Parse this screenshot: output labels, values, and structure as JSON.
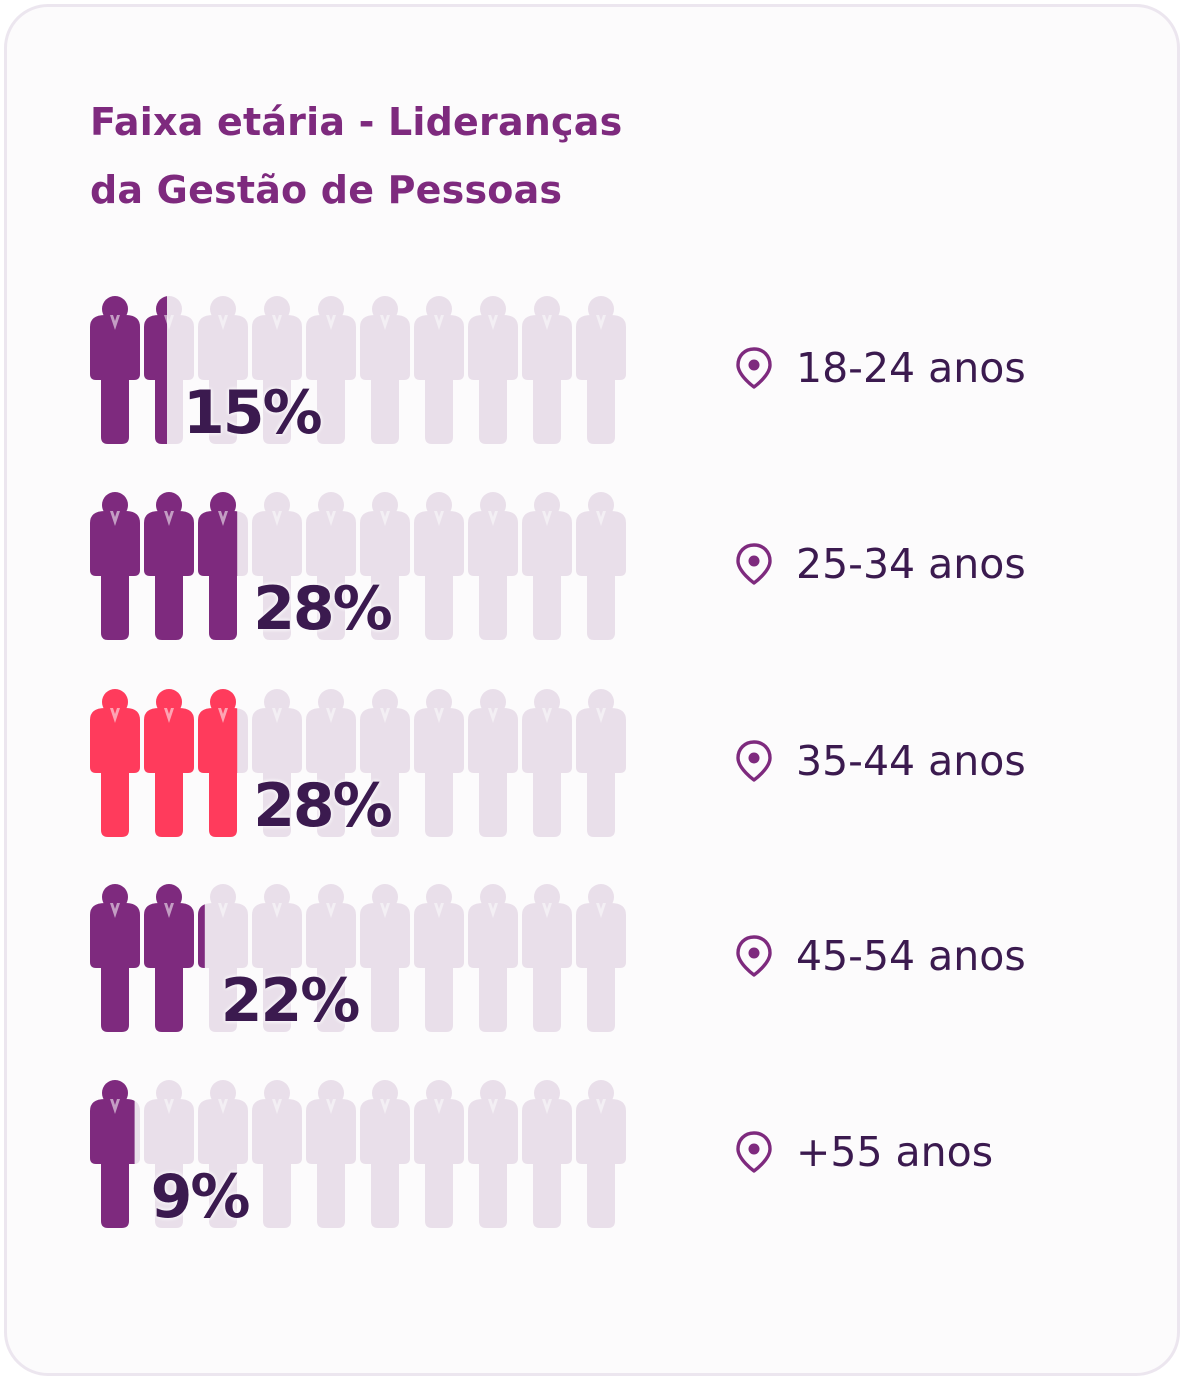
{
  "title_lines": [
    "Faixa etária - Lideranças",
    "da Gestão de Pessoas"
  ],
  "colors": {
    "highlight": "#7e2a7e",
    "highlight_alt": "#ff3b5c",
    "background_figure": "#e9dfea",
    "text_dark": "#3b1a4f",
    "title": "#7e2a7e"
  },
  "icon": "location-pin-icon",
  "chart_data": {
    "type": "pictogram",
    "title": "Faixa etária - Lideranças da Gestão de Pessoas",
    "units_per_icon": 10,
    "total_icons": 10,
    "categories": [
      "18-24 anos",
      "25-34 anos",
      "35-44 anos",
      "45-54 anos",
      "+55 anos"
    ],
    "values": [
      15,
      28,
      28,
      22,
      9
    ],
    "value_labels": [
      "15%",
      "28%",
      "28%",
      "22%",
      "9%"
    ],
    "highlighted_category": "35-44 anos"
  }
}
